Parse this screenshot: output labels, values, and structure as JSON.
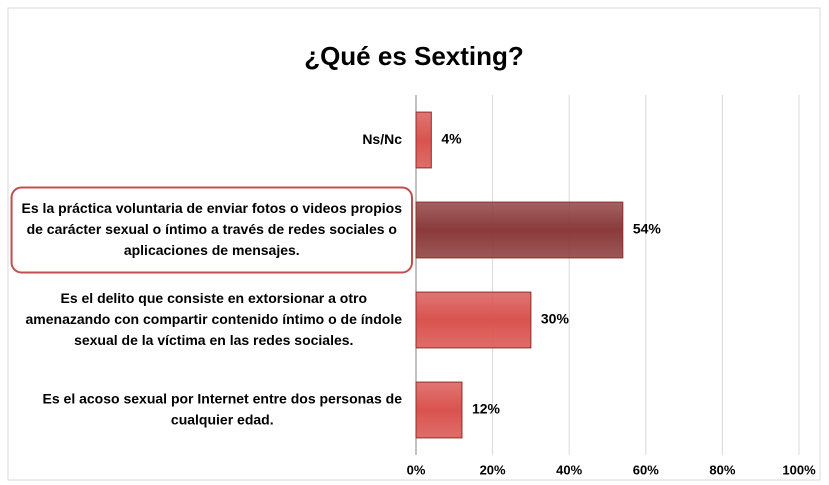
{
  "chart_data": {
    "type": "bar",
    "orientation": "horizontal",
    "title": "¿Qué es Sexting?",
    "categories": [
      "Ns/Nc",
      "Es la práctica voluntaria de enviar fotos o videos propios de carácter sexual o íntimo a través de redes sociales o aplicaciones de mensajes.",
      "Es el delito que consiste en extorsionar a otro amenazando con  compartir contenido íntimo o de índole sexual de la víctima en las redes sociales.",
      "Es el acoso sexual por Internet entre dos personas de cualquier edad."
    ],
    "values": [
      4,
      54,
      30,
      12
    ],
    "value_labels": [
      "4%",
      "54%",
      "30%",
      "12%"
    ],
    "colors": [
      "#d9534f",
      "#8b3a3a",
      "#d9534f",
      "#d9534f"
    ],
    "highlight": 1,
    "xlim": [
      0,
      100
    ],
    "xticks": [
      {
        "value": 0,
        "label": "0%"
      },
      {
        "value": 20,
        "label": "20%"
      },
      {
        "value": 40,
        "label": "40%"
      },
      {
        "value": 60,
        "label": "60%"
      },
      {
        "value": 80,
        "label": "80%"
      },
      {
        "value": 100,
        "label": "100%"
      }
    ],
    "grid": true
  }
}
